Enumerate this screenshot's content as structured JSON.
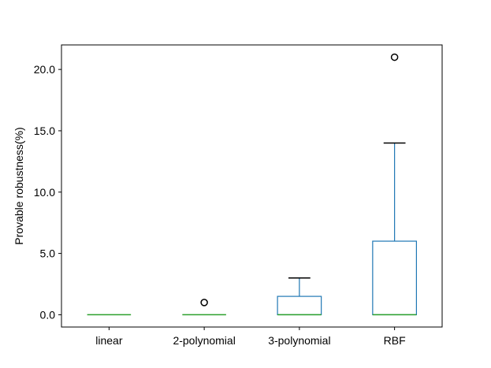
{
  "chart_data": {
    "type": "box",
    "title": "",
    "xlabel": "",
    "ylabel": "Provable robustness(%)",
    "categories": [
      "linear",
      "2-polynomial",
      "3-polynomial",
      "RBF"
    ],
    "boxes": [
      {
        "category": "linear",
        "whisker_low": 0.0,
        "q1": 0.0,
        "median": 0.0,
        "q3": 0.0,
        "whisker_high": 0.0,
        "outliers": []
      },
      {
        "category": "2-polynomial",
        "whisker_low": 0.0,
        "q1": 0.0,
        "median": 0.0,
        "q3": 0.0,
        "whisker_high": 0.0,
        "outliers": [
          1.0
        ]
      },
      {
        "category": "3-polynomial",
        "whisker_low": 0.0,
        "q1": 0.0,
        "median": 0.0,
        "q3": 1.5,
        "whisker_high": 3.0,
        "outliers": []
      },
      {
        "category": "RBF",
        "whisker_low": 0.0,
        "q1": 0.0,
        "median": 0.0,
        "q3": 6.0,
        "whisker_high": 14.0,
        "outliers": [
          21.0
        ]
      }
    ],
    "y_ticks": [
      "0.0",
      "5.0",
      "10.0",
      "15.0",
      "20.0"
    ],
    "y_tick_values": [
      0,
      5,
      10,
      15,
      20
    ],
    "ylim": [
      -1.0,
      22.0
    ],
    "grid": false,
    "colors": {
      "box": "#1f77b4",
      "median": "#2ca02c",
      "whisker": "#000000",
      "outlier": "#000000"
    }
  }
}
